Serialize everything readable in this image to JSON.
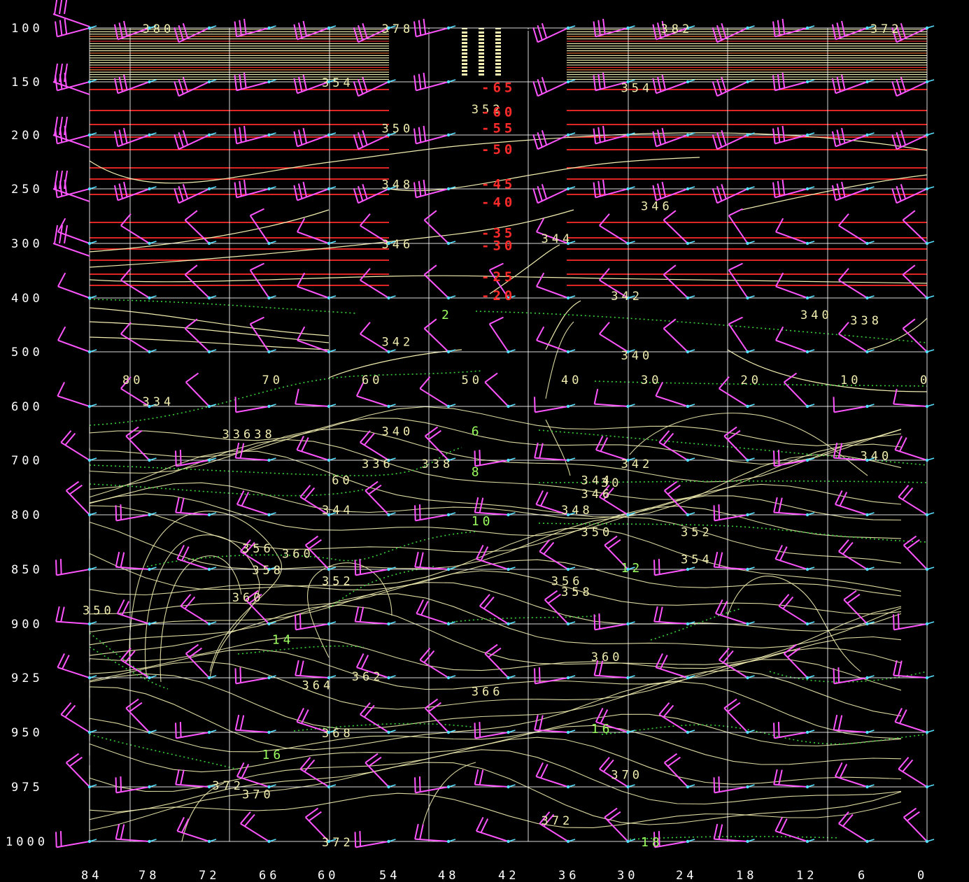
{
  "chart_data": {
    "type": "time-height cross-section",
    "colors": {
      "background": "#000000",
      "grid": "#ffffff",
      "theta_contour": "#f2eeb0",
      "temperature_contour": "#ff2a2a",
      "rh_contour": "#39d23a",
      "rh_label": "#9cff60",
      "wind_barb_shaft": "#ff55ff",
      "wind_barb_arrow": "#55e0ff"
    },
    "y_axis": {
      "ticks": [
        "100",
        "150",
        "200",
        "250",
        "300",
        "400",
        "500",
        "600",
        "700",
        "800",
        "850",
        "900",
        "925",
        "950",
        "975",
        "1000"
      ]
    },
    "x_axis": {
      "ticks": [
        "84",
        "78",
        "72",
        "66",
        "60",
        "54",
        "48",
        "42",
        "36",
        "30",
        "24",
        "18",
        "12",
        "6",
        "0"
      ],
      "reversed": true
    },
    "theta_labels": [
      {
        "text": "380",
        "x": 78,
        "y": 100
      },
      {
        "text": "378",
        "x": 54,
        "y": 100
      },
      {
        "text": "382",
        "x": 26,
        "y": 100
      },
      {
        "text": "372",
        "x": 5,
        "y": 100
      },
      {
        "text": "354",
        "x": 60,
        "y": 150
      },
      {
        "text": "354",
        "x": 30,
        "y": 155
      },
      {
        "text": "352",
        "x": 45,
        "y": 175
      },
      {
        "text": "350",
        "x": 54,
        "y": 193
      },
      {
        "text": "348",
        "x": 54,
        "y": 245
      },
      {
        "text": "346",
        "x": 28,
        "y": 265
      },
      {
        "text": "346",
        "x": 54,
        "y": 300
      },
      {
        "text": "344",
        "x": 38,
        "y": 295
      },
      {
        "text": "342",
        "x": 31,
        "y": 395
      },
      {
        "text": "340",
        "x": 12,
        "y": 430
      },
      {
        "text": "338",
        "x": 7,
        "y": 440
      },
      {
        "text": "342",
        "x": 54,
        "y": 480
      },
      {
        "text": "340",
        "x": 30,
        "y": 505
      },
      {
        "text": "80",
        "x": 80,
        "y": 550
      },
      {
        "text": "70",
        "x": 66,
        "y": 550
      },
      {
        "text": "60",
        "x": 56,
        "y": 550
      },
      {
        "text": "50",
        "x": 46,
        "y": 550
      },
      {
        "text": "40",
        "x": 36,
        "y": 550
      },
      {
        "text": "30",
        "x": 28,
        "y": 550
      },
      {
        "text": "20",
        "x": 18,
        "y": 550
      },
      {
        "text": "10",
        "x": 8,
        "y": 550
      },
      {
        "text": "0",
        "x": 0,
        "y": 550
      },
      {
        "text": "334",
        "x": 78,
        "y": 590
      },
      {
        "text": "33638",
        "x": 70,
        "y": 650
      },
      {
        "text": "340",
        "x": 54,
        "y": 645
      },
      {
        "text": "340",
        "x": 6,
        "y": 690
      },
      {
        "text": "342",
        "x": 30,
        "y": 705
      },
      {
        "text": "336",
        "x": 56,
        "y": 705
      },
      {
        "text": "338",
        "x": 50,
        "y": 705
      },
      {
        "text": "60",
        "x": 59,
        "y": 735
      },
      {
        "text": "344",
        "x": 34,
        "y": 735
      },
      {
        "text": "30",
        "x": 32,
        "y": 740
      },
      {
        "text": "346",
        "x": 34,
        "y": 760
      },
      {
        "text": "348",
        "x": 36,
        "y": 790
      },
      {
        "text": "350",
        "x": 34,
        "y": 815
      },
      {
        "text": "344",
        "x": 60,
        "y": 790
      },
      {
        "text": "352",
        "x": 24,
        "y": 815
      },
      {
        "text": "354",
        "x": 24,
        "y": 840
      },
      {
        "text": "356",
        "x": 68,
        "y": 830
      },
      {
        "text": "360",
        "x": 64,
        "y": 835
      },
      {
        "text": "358",
        "x": 67,
        "y": 850
      },
      {
        "text": "352",
        "x": 60,
        "y": 860
      },
      {
        "text": "356",
        "x": 37,
        "y": 860
      },
      {
        "text": "358",
        "x": 36,
        "y": 870
      },
      {
        "text": "360",
        "x": 69,
        "y": 875
      },
      {
        "text": "350",
        "x": 84,
        "y": 887
      },
      {
        "text": "360",
        "x": 33,
        "y": 915
      },
      {
        "text": "362",
        "x": 57,
        "y": 924
      },
      {
        "text": "364",
        "x": 62,
        "y": 928
      },
      {
        "text": "366",
        "x": 45,
        "y": 931
      },
      {
        "text": "368",
        "x": 60,
        "y": 950
      },
      {
        "text": "370",
        "x": 31,
        "y": 969
      },
      {
        "text": "372",
        "x": 71,
        "y": 974
      },
      {
        "text": "370",
        "x": 68,
        "y": 978
      },
      {
        "text": "372",
        "x": 38,
        "y": 990
      },
      {
        "text": "372",
        "x": 60,
        "y": 1000
      }
    ],
    "temperature_labels": [
      {
        "text": "-65",
        "x": 44,
        "y": 155
      },
      {
        "text": "-60",
        "x": 44,
        "y": 178
      },
      {
        "text": "-55",
        "x": 44,
        "y": 193
      },
      {
        "text": "-50",
        "x": 44,
        "y": 213
      },
      {
        "text": "-45",
        "x": 44,
        "y": 245
      },
      {
        "text": "-40",
        "x": 44,
        "y": 262
      },
      {
        "text": "-35",
        "x": 44,
        "y": 290
      },
      {
        "text": "-30",
        "x": 44,
        "y": 303
      },
      {
        "text": "-25",
        "x": 44,
        "y": 360
      },
      {
        "text": "-20",
        "x": 44,
        "y": 395
      }
    ],
    "rh_labels": [
      {
        "text": "2",
        "x": 48,
        "y": 430
      },
      {
        "text": "6",
        "x": 45,
        "y": 645
      },
      {
        "text": "8",
        "x": 45,
        "y": 720
      },
      {
        "text": "10",
        "x": 45,
        "y": 805
      },
      {
        "text": "12",
        "x": 30,
        "y": 848
      },
      {
        "text": "14",
        "x": 65,
        "y": 907
      },
      {
        "text": "16",
        "x": 33,
        "y": 948
      },
      {
        "text": "16",
        "x": 66,
        "y": 960
      },
      {
        "text": "18",
        "x": 28,
        "y": 1000
      }
    ]
  }
}
